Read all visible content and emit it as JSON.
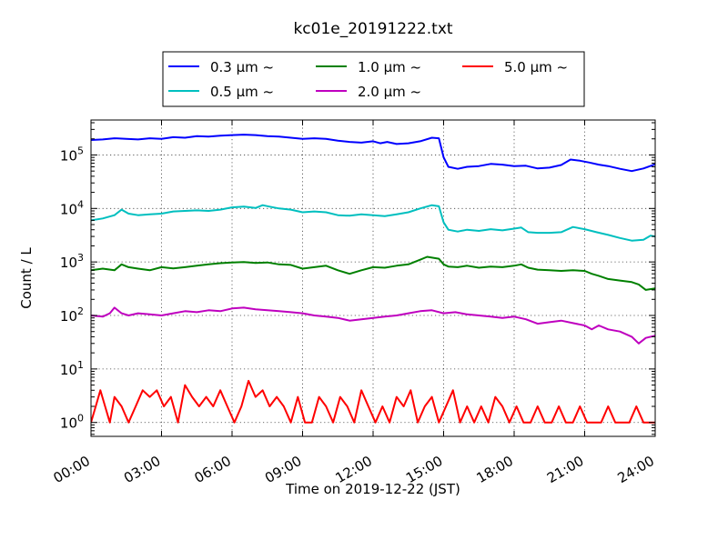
{
  "chart_data": {
    "type": "line",
    "title": "kc01e_20191222.txt",
    "xlabel": "Time on 2019-12-22 (JST)",
    "ylabel": "Count / L",
    "yscale": "log",
    "grid": true,
    "legend_placement": "top",
    "x_ticks": [
      "00:00",
      "03:00",
      "06:00",
      "09:00",
      "12:00",
      "15:00",
      "18:00",
      "21:00",
      "24:00"
    ],
    "y_ticks": [
      {
        "value": 1,
        "base": "10",
        "exp": "0"
      },
      {
        "value": 10,
        "base": "10",
        "exp": "1"
      },
      {
        "value": 100,
        "base": "10",
        "exp": "2"
      },
      {
        "value": 1000,
        "base": "10",
        "exp": "3"
      },
      {
        "value": 10000,
        "base": "10",
        "exp": "4"
      },
      {
        "value": 100000,
        "base": "10",
        "exp": "5"
      }
    ],
    "x_unit": "hours",
    "xlim": [
      0,
      24
    ],
    "ylim": [
      0.55,
      450000
    ],
    "series": [
      {
        "name": "0.3 μm ~",
        "color": "#0000ff",
        "points": [
          [
            0,
            190000
          ],
          [
            0.5,
            195000
          ],
          [
            1,
            205000
          ],
          [
            1.5,
            200000
          ],
          [
            2,
            195000
          ],
          [
            2.5,
            205000
          ],
          [
            3,
            200000
          ],
          [
            3.5,
            215000
          ],
          [
            4,
            210000
          ],
          [
            4.5,
            225000
          ],
          [
            5,
            220000
          ],
          [
            5.5,
            230000
          ],
          [
            6,
            235000
          ],
          [
            6.5,
            240000
          ],
          [
            7,
            235000
          ],
          [
            7.5,
            225000
          ],
          [
            8,
            220000
          ],
          [
            8.5,
            210000
          ],
          [
            9,
            200000
          ],
          [
            9.5,
            205000
          ],
          [
            10,
            200000
          ],
          [
            10.5,
            185000
          ],
          [
            11,
            175000
          ],
          [
            11.5,
            170000
          ],
          [
            12,
            180000
          ],
          [
            12.3,
            165000
          ],
          [
            12.6,
            175000
          ],
          [
            13,
            160000
          ],
          [
            13.5,
            165000
          ],
          [
            14,
            180000
          ],
          [
            14.5,
            210000
          ],
          [
            14.8,
            205000
          ],
          [
            15,
            90000
          ],
          [
            15.2,
            60000
          ],
          [
            15.6,
            55000
          ],
          [
            16,
            60000
          ],
          [
            16.5,
            62000
          ],
          [
            17,
            68000
          ],
          [
            17.5,
            66000
          ],
          [
            18,
            62000
          ],
          [
            18.5,
            63000
          ],
          [
            19,
            56000
          ],
          [
            19.5,
            58000
          ],
          [
            20,
            65000
          ],
          [
            20.4,
            82000
          ],
          [
            20.8,
            78000
          ],
          [
            21.2,
            72000
          ],
          [
            21.6,
            66000
          ],
          [
            22,
            62000
          ],
          [
            22.5,
            55000
          ],
          [
            23,
            50000
          ],
          [
            23.5,
            56000
          ],
          [
            24,
            67000
          ]
        ]
      },
      {
        "name": "0.5 μm ~",
        "color": "#00bfbf",
        "points": [
          [
            0,
            6000
          ],
          [
            0.5,
            6500
          ],
          [
            1,
            7500
          ],
          [
            1.3,
            9500
          ],
          [
            1.6,
            8000
          ],
          [
            2,
            7500
          ],
          [
            2.5,
            7800
          ],
          [
            3,
            8000
          ],
          [
            3.5,
            8800
          ],
          [
            4,
            9000
          ],
          [
            4.5,
            9200
          ],
          [
            5,
            9000
          ],
          [
            5.5,
            9500
          ],
          [
            6,
            10500
          ],
          [
            6.5,
            10800
          ],
          [
            7,
            10200
          ],
          [
            7.3,
            11500
          ],
          [
            7.6,
            10800
          ],
          [
            8,
            10000
          ],
          [
            8.5,
            9500
          ],
          [
            9,
            8500
          ],
          [
            9.5,
            8800
          ],
          [
            10,
            8500
          ],
          [
            10.5,
            7500
          ],
          [
            11,
            7300
          ],
          [
            11.5,
            7800
          ],
          [
            12,
            7500
          ],
          [
            12.5,
            7200
          ],
          [
            13,
            7800
          ],
          [
            13.5,
            8500
          ],
          [
            14,
            10000
          ],
          [
            14.5,
            11500
          ],
          [
            14.8,
            11000
          ],
          [
            15,
            5500
          ],
          [
            15.2,
            4000
          ],
          [
            15.6,
            3700
          ],
          [
            16,
            4000
          ],
          [
            16.5,
            3800
          ],
          [
            17,
            4100
          ],
          [
            17.5,
            3900
          ],
          [
            18,
            4200
          ],
          [
            18.3,
            4400
          ],
          [
            18.6,
            3600
          ],
          [
            19,
            3500
          ],
          [
            19.5,
            3500
          ],
          [
            20,
            3600
          ],
          [
            20.5,
            4500
          ],
          [
            21,
            4100
          ],
          [
            21.5,
            3600
          ],
          [
            22,
            3200
          ],
          [
            22.5,
            2800
          ],
          [
            23,
            2500
          ],
          [
            23.5,
            2600
          ],
          [
            23.8,
            3100
          ],
          [
            24,
            3000
          ]
        ]
      },
      {
        "name": "1.0 μm ~",
        "color": "#008000",
        "points": [
          [
            0,
            700
          ],
          [
            0.5,
            750
          ],
          [
            1,
            700
          ],
          [
            1.3,
            900
          ],
          [
            1.6,
            800
          ],
          [
            2,
            750
          ],
          [
            2.5,
            700
          ],
          [
            3,
            800
          ],
          [
            3.5,
            760
          ],
          [
            4,
            800
          ],
          [
            4.5,
            850
          ],
          [
            5,
            900
          ],
          [
            5.5,
            950
          ],
          [
            6,
            980
          ],
          [
            6.5,
            1000
          ],
          [
            7,
            960
          ],
          [
            7.5,
            980
          ],
          [
            8,
            900
          ],
          [
            8.5,
            880
          ],
          [
            9,
            750
          ],
          [
            9.5,
            800
          ],
          [
            10,
            850
          ],
          [
            10.5,
            700
          ],
          [
            11,
            600
          ],
          [
            11.5,
            700
          ],
          [
            12,
            800
          ],
          [
            12.5,
            780
          ],
          [
            13,
            850
          ],
          [
            13.5,
            900
          ],
          [
            14,
            1100
          ],
          [
            14.3,
            1250
          ],
          [
            14.8,
            1150
          ],
          [
            15,
            900
          ],
          [
            15.2,
            820
          ],
          [
            15.6,
            800
          ],
          [
            16,
            850
          ],
          [
            16.5,
            780
          ],
          [
            17,
            820
          ],
          [
            17.5,
            800
          ],
          [
            18,
            850
          ],
          [
            18.3,
            900
          ],
          [
            18.6,
            780
          ],
          [
            19,
            720
          ],
          [
            19.5,
            700
          ],
          [
            20,
            680
          ],
          [
            20.5,
            700
          ],
          [
            21,
            680
          ],
          [
            21.3,
            600
          ],
          [
            21.6,
            550
          ],
          [
            22,
            480
          ],
          [
            22.5,
            450
          ],
          [
            23,
            420
          ],
          [
            23.3,
            380
          ],
          [
            23.6,
            300
          ],
          [
            24,
            320
          ]
        ]
      },
      {
        "name": "2.0 μm ~",
        "color": "#bf00bf",
        "points": [
          [
            0,
            100
          ],
          [
            0.5,
            95
          ],
          [
            0.8,
            110
          ],
          [
            1,
            140
          ],
          [
            1.3,
            110
          ],
          [
            1.6,
            100
          ],
          [
            2,
            110
          ],
          [
            2.5,
            105
          ],
          [
            3,
            100
          ],
          [
            3.5,
            110
          ],
          [
            4,
            120
          ],
          [
            4.5,
            115
          ],
          [
            5,
            125
          ],
          [
            5.5,
            120
          ],
          [
            6,
            135
          ],
          [
            6.5,
            140
          ],
          [
            7,
            130
          ],
          [
            7.5,
            125
          ],
          [
            8,
            120
          ],
          [
            8.5,
            115
          ],
          [
            9,
            110
          ],
          [
            9.5,
            100
          ],
          [
            10,
            95
          ],
          [
            10.5,
            90
          ],
          [
            11,
            80
          ],
          [
            11.5,
            85
          ],
          [
            12,
            90
          ],
          [
            12.5,
            95
          ],
          [
            13,
            100
          ],
          [
            13.5,
            110
          ],
          [
            14,
            120
          ],
          [
            14.5,
            125
          ],
          [
            15,
            110
          ],
          [
            15.5,
            115
          ],
          [
            16,
            105
          ],
          [
            16.5,
            100
          ],
          [
            17,
            95
          ],
          [
            17.5,
            90
          ],
          [
            18,
            95
          ],
          [
            18.5,
            85
          ],
          [
            19,
            70
          ],
          [
            19.5,
            75
          ],
          [
            20,
            80
          ],
          [
            20.5,
            72
          ],
          [
            21,
            65
          ],
          [
            21.3,
            55
          ],
          [
            21.6,
            65
          ],
          [
            22,
            55
          ],
          [
            22.5,
            50
          ],
          [
            23,
            40
          ],
          [
            23.3,
            30
          ],
          [
            23.6,
            38
          ],
          [
            24,
            42
          ]
        ]
      },
      {
        "name": "5.0 μm ~",
        "color": "#ff0000",
        "points": [
          [
            0,
            1
          ],
          [
            0.2,
            2
          ],
          [
            0.4,
            4
          ],
          [
            0.6,
            2
          ],
          [
            0.8,
            1
          ],
          [
            1,
            3
          ],
          [
            1.3,
            2
          ],
          [
            1.6,
            1
          ],
          [
            1.9,
            2
          ],
          [
            2.2,
            4
          ],
          [
            2.5,
            3
          ],
          [
            2.8,
            4
          ],
          [
            3.1,
            2
          ],
          [
            3.4,
            3
          ],
          [
            3.7,
            1
          ],
          [
            4,
            5
          ],
          [
            4.3,
            3
          ],
          [
            4.6,
            2
          ],
          [
            4.9,
            3
          ],
          [
            5.2,
            2
          ],
          [
            5.5,
            4
          ],
          [
            5.8,
            2
          ],
          [
            6.1,
            1
          ],
          [
            6.4,
            2
          ],
          [
            6.7,
            6
          ],
          [
            7,
            3
          ],
          [
            7.3,
            4
          ],
          [
            7.6,
            2
          ],
          [
            7.9,
            3
          ],
          [
            8.2,
            2
          ],
          [
            8.5,
            1
          ],
          [
            8.8,
            3
          ],
          [
            9.1,
            1
          ],
          [
            9.4,
            1
          ],
          [
            9.7,
            3
          ],
          [
            10,
            2
          ],
          [
            10.3,
            1
          ],
          [
            10.6,
            3
          ],
          [
            10.9,
            2
          ],
          [
            11.2,
            1
          ],
          [
            11.5,
            4
          ],
          [
            11.8,
            2
          ],
          [
            12.1,
            1
          ],
          [
            12.4,
            2
          ],
          [
            12.7,
            1
          ],
          [
            13,
            3
          ],
          [
            13.3,
            2
          ],
          [
            13.6,
            4
          ],
          [
            13.9,
            1
          ],
          [
            14.2,
            2
          ],
          [
            14.5,
            3
          ],
          [
            14.8,
            1
          ],
          [
            15.1,
            2
          ],
          [
            15.4,
            4
          ],
          [
            15.7,
            1
          ],
          [
            16,
            2
          ],
          [
            16.3,
            1
          ],
          [
            16.6,
            2
          ],
          [
            16.9,
            1
          ],
          [
            17.2,
            3
          ],
          [
            17.5,
            2
          ],
          [
            17.8,
            1
          ],
          [
            18.1,
            2
          ],
          [
            18.4,
            1
          ],
          [
            18.7,
            1
          ],
          [
            19,
            2
          ],
          [
            19.3,
            1
          ],
          [
            19.6,
            1
          ],
          [
            19.9,
            2
          ],
          [
            20.2,
            1
          ],
          [
            20.5,
            1
          ],
          [
            20.8,
            2
          ],
          [
            21.1,
            1
          ],
          [
            21.4,
            1
          ],
          [
            21.7,
            1
          ],
          [
            22,
            2
          ],
          [
            22.3,
            1
          ],
          [
            22.6,
            1
          ],
          [
            22.9,
            1
          ],
          [
            23.2,
            2
          ],
          [
            23.5,
            1
          ],
          [
            23.8,
            1
          ],
          [
            24,
            1
          ]
        ]
      }
    ]
  }
}
